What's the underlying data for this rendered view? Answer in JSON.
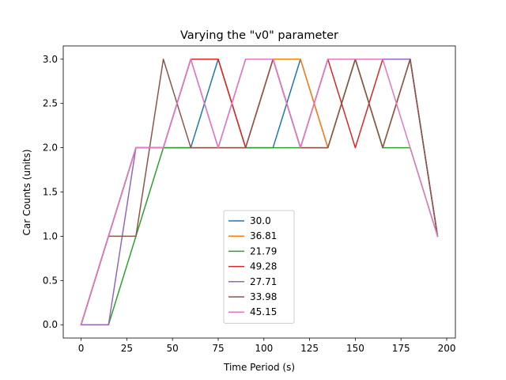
{
  "chart_data": {
    "type": "line",
    "title": "Varying the \"v0\" parameter",
    "xlabel": "Time Period (s)",
    "ylabel": "Car Counts (units)",
    "xlim": [
      -9.75,
      204.75
    ],
    "ylim": [
      -0.15,
      3.15
    ],
    "xticks": [
      0,
      25,
      50,
      75,
      100,
      125,
      150,
      175,
      200
    ],
    "yticks": [
      0.0,
      0.5,
      1.0,
      1.5,
      2.0,
      2.5,
      3.0
    ],
    "xtick_labels": [
      "0",
      "25",
      "50",
      "75",
      "100",
      "125",
      "150",
      "175",
      "200"
    ],
    "ytick_labels": [
      "0.0",
      "0.5",
      "1.0",
      "1.5",
      "2.0",
      "2.5",
      "3.0"
    ],
    "grid": false,
    "legend_position": "lower center",
    "x": [
      0,
      15,
      30,
      45,
      60,
      75,
      90,
      105,
      120,
      135,
      150,
      165,
      180,
      195
    ],
    "series": [
      {
        "name": "30.0",
        "color": "#1f77b4",
        "values": [
          0,
          1,
          2,
          2,
          2,
          3,
          2,
          2,
          3,
          2,
          3,
          2,
          3,
          1
        ]
      },
      {
        "name": "36.81",
        "color": "#ff7f0e",
        "values": [
          0,
          1,
          2,
          2,
          3,
          3,
          2,
          3,
          3,
          2,
          3,
          2,
          3,
          1
        ]
      },
      {
        "name": "21.79",
        "color": "#2ca02c",
        "values": [
          0,
          0,
          1,
          2,
          2,
          2,
          2,
          2,
          2,
          2,
          3,
          2,
          2,
          1
        ]
      },
      {
        "name": "49.28",
        "color": "#d62728",
        "values": [
          0,
          1,
          2,
          2,
          3,
          3,
          2,
          3,
          2,
          3,
          2,
          3,
          3,
          1
        ]
      },
      {
        "name": "27.71",
        "color": "#9467bd",
        "values": [
          0,
          0,
          2,
          2,
          3,
          2,
          3,
          3,
          2,
          3,
          3,
          3,
          3,
          1
        ]
      },
      {
        "name": "33.98",
        "color": "#8c564b",
        "values": [
          0,
          1,
          1,
          3,
          2,
          2,
          2,
          3,
          2,
          2,
          3,
          2,
          3,
          1
        ]
      },
      {
        "name": "45.15",
        "color": "#e377c2",
        "values": [
          0,
          1,
          2,
          2,
          3,
          2,
          3,
          3,
          2,
          3,
          3,
          3,
          2,
          1
        ]
      }
    ]
  }
}
